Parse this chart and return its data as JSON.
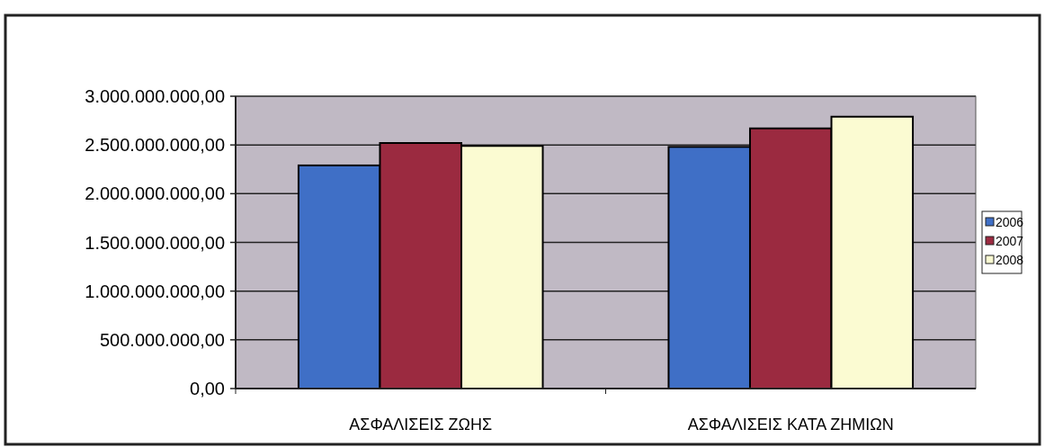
{
  "chart_data": {
    "type": "bar",
    "categories": [
      "ΑΣΦΑΛΙΣΕΙΣ ΖΩΗΣ",
      "ΑΣΦΑΛΙΣΕΙΣ ΚΑΤΑ ΖΗΜΙΩΝ"
    ],
    "series": [
      {
        "name": "2006",
        "color": "#3f6fc6",
        "values": [
          2290000000,
          2480000000
        ]
      },
      {
        "name": "2007",
        "color": "#9b2a40",
        "values": [
          2520000000,
          2670000000
        ]
      },
      {
        "name": "2008",
        "color": "#fbfbd2",
        "values": [
          2490000000,
          2790000000
        ]
      }
    ],
    "ylim": [
      0,
      3000000000
    ],
    "yticks": [
      {
        "value": 0,
        "label": "0,00"
      },
      {
        "value": 500000000,
        "label": "500.000.000,00"
      },
      {
        "value": 1000000000,
        "label": "1.000.000.000,00"
      },
      {
        "value": 1500000000,
        "label": "1.500.000.000,00"
      },
      {
        "value": 2000000000,
        "label": "2.000.000.000,00"
      },
      {
        "value": 2500000000,
        "label": "2.500.000.000,00"
      },
      {
        "value": 3000000000,
        "label": "3.000.000.000,00"
      }
    ],
    "grid": "y",
    "legend": "right"
  }
}
